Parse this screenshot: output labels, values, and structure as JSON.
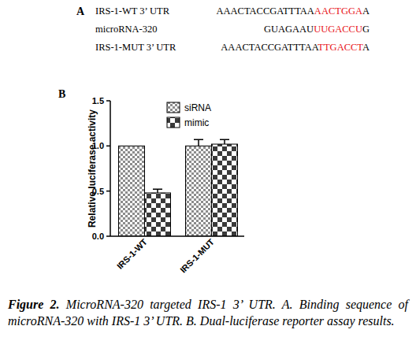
{
  "panel_labels": [
    "A",
    "B"
  ],
  "sequences": [
    {
      "label": "IRS-1-WT 3’ UTR",
      "segments": [
        {
          "text": "AAACTACCGATTTAA",
          "color": "#000000"
        },
        {
          "text": "AACTGGA",
          "color": "#e8141a"
        },
        {
          "text": "A",
          "color": "#000000"
        }
      ]
    },
    {
      "label": "microRNA-320",
      "segments": [
        {
          "text": "GUAGAAU",
          "color": "#000000"
        },
        {
          "text": "UUGACCU",
          "color": "#e8141a"
        },
        {
          "text": "G",
          "color": "#000000"
        }
      ]
    },
    {
      "label": "IRS-1-MUT 3’ UTR",
      "segments": [
        {
          "text": "AAACTACCGATTTAA",
          "color": "#000000"
        },
        {
          "text": "TTGACCT",
          "color": "#e8141a"
        },
        {
          "text": "A",
          "color": "#000000"
        }
      ]
    }
  ],
  "chart_data": {
    "type": "bar",
    "y_label": "Relative luciferase activity",
    "categories": [
      "IRS-1-WT",
      "IRS-1-MUT"
    ],
    "series": [
      {
        "name": "siRNA",
        "color": "#8c8c8c",
        "values": [
          1.0,
          1.0
        ],
        "errors": [
          0,
          0.07
        ]
      },
      {
        "name": "mimic",
        "color": "#3a3a3a",
        "values": [
          0.48,
          1.02
        ],
        "errors": [
          0.04,
          0.05
        ]
      }
    ],
    "ylim": [
      0,
      1.5
    ],
    "yticks": [
      {
        "value": 0,
        "label": "0.0"
      },
      {
        "value": 0.5,
        "label": "0.5"
      },
      {
        "value": 1,
        "label": "1.0"
      },
      {
        "value": 1.5,
        "label": "1.5"
      }
    ],
    "legend": "upper right",
    "grid": false
  },
  "caption": {
    "label": "Figure 2.",
    "text": "MicroRNA-320 targeted IRS-1 3’ UTR. A. Binding sequence of microRNA-320 with IRS-1 3’ UTR. B. Dual-luciferase reporter assay results."
  }
}
